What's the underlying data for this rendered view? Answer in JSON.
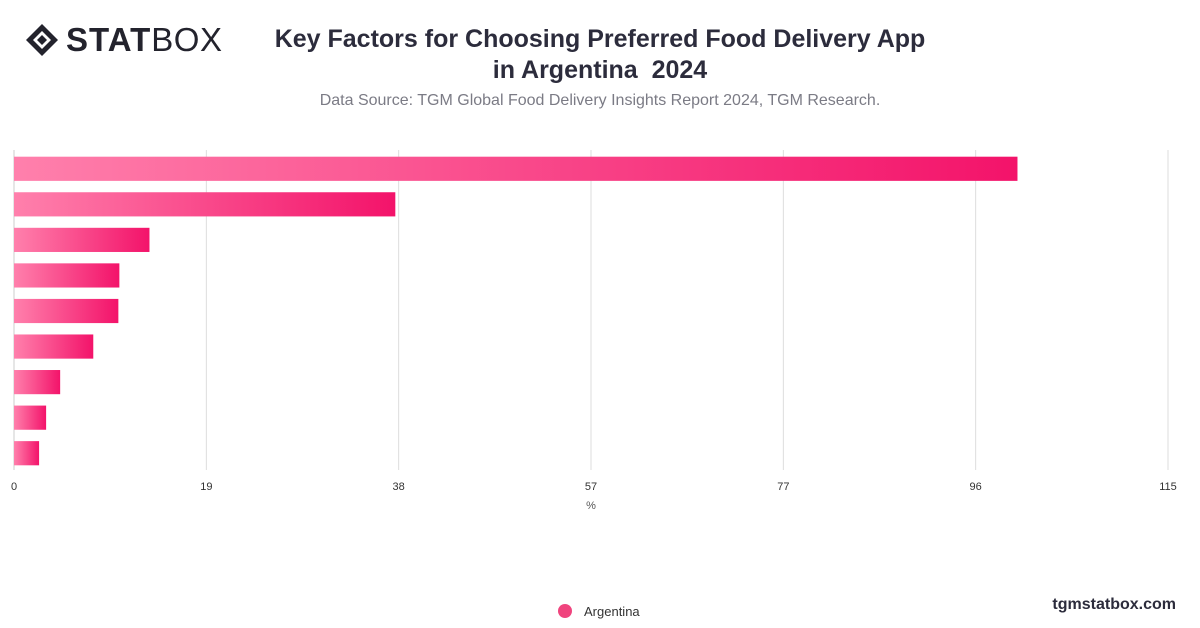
{
  "header": {
    "brand_bold": "STAT",
    "brand_light": "BOX",
    "title_line1": "Key Factors for Choosing Preferred Food Delivery App",
    "title_line2": "in Argentina  2024",
    "subtitle": "Data Source: TGM Global Food Delivery Insights Report 2024, TGM Research."
  },
  "footer": {
    "site": "tgmstatbox.com"
  },
  "colors": {
    "bar_start": "#ff80ac",
    "bar_end": "#f3136a",
    "grid": "#dddddd",
    "text": "#333333"
  },
  "chart_data": {
    "type": "bar",
    "orientation": "horizontal",
    "title": "Key Factors for Choosing Preferred Food Delivery App in Argentina  2024",
    "xlabel": "%",
    "xlim": [
      0,
      115
    ],
    "xticks": [
      "0",
      "19",
      "38",
      "57",
      "77",
      "96",
      "115"
    ],
    "categories": [
      "",
      "",
      "",
      "",
      "",
      "",
      "",
      "",
      ""
    ],
    "series": [
      {
        "name": "Argentina",
        "values": [
          100,
          38,
          13.5,
          10.5,
          10.4,
          7.9,
          4.6,
          3.2,
          2.5
        ]
      }
    ],
    "legend_position": "bottom-center",
    "grid": true
  }
}
